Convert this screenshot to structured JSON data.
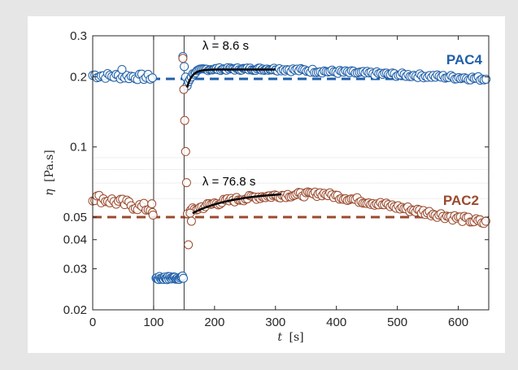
{
  "chart_data": {
    "type": "scatter",
    "x_axis": {
      "label_sym": "t",
      "label_unit": "[s]",
      "lim": [
        0,
        650
      ],
      "ticks": [
        0,
        100,
        200,
        300,
        400,
        500,
        600
      ],
      "tick_labels": [
        "0",
        "100",
        "200",
        "300",
        "400",
        "500",
        "600"
      ]
    },
    "y_axis": {
      "label_sym": "η",
      "label_unit": "[Pa.s]",
      "scale": "log",
      "lim": [
        0.02,
        0.3
      ],
      "ticks": [
        0.02,
        0.03,
        0.04,
        0.05,
        0.1,
        0.2,
        0.3
      ],
      "tick_labels": [
        "0.02",
        "0.03",
        "0.04",
        "0.05",
        "0.1",
        "0.2",
        "0.3"
      ]
    },
    "minor_grid_y": [
      0.06,
      0.07,
      0.08,
      0.09
    ],
    "vertical_lines_x": [
      100,
      150
    ],
    "series": [
      {
        "name": "PAC4",
        "color": "#1f5fa8",
        "segments": [
          {
            "x_start": 0,
            "x_end": 98,
            "step": 3.5,
            "y_from": 0.203,
            "y_to": 0.199,
            "noise": 0.006
          },
          {
            "x_start": 104,
            "x_end": 150,
            "step": 1.4,
            "y_from": 0.0273,
            "y_to": 0.0275,
            "noise": 0.0005
          },
          {
            "x_start": 148,
            "x_end": 155,
            "step": 2.3,
            "y_from": 0.245,
            "y_to": 0.18,
            "noise": 0.004
          },
          {
            "x_start": 155,
            "x_end": 300,
            "step": 2.3,
            "relax": {
              "y0": 0.183,
              "y_inf": 0.216,
              "tau": 8.6
            },
            "noise": 0.003
          },
          {
            "x_start": 300,
            "x_end": 648,
            "step": 3.2,
            "y_from": 0.216,
            "y_to": 0.196,
            "noise": 0.004
          }
        ],
        "extra_points": [
          [
            48,
            0.215
          ]
        ],
        "reference_level": 0.196,
        "fit": {
          "label": "λ = 8.6 s",
          "x_start": 155,
          "x_end": 300,
          "y0": 0.18,
          "y_inf": 0.215,
          "tau": 8.6
        }
      },
      {
        "name": "PAC2",
        "color": "#9a4a2e",
        "segments": [
          {
            "x_start": 0,
            "x_end": 98,
            "step": 3.5,
            "y_from": 0.061,
            "y_to": 0.054,
            "noise": 0.0025
          },
          {
            "x_start": 148,
            "x_end": 158,
            "step": 1.5,
            "y_from": 0.24,
            "y_to": 0.031,
            "noise": 0.0
          },
          {
            "x_start": 161,
            "x_end": 370,
            "step": 3.0,
            "relax": {
              "y0": 0.053,
              "y_inf": 0.0635,
              "tau": 76.8
            },
            "noise": 0.0015
          },
          {
            "x_start": 370,
            "x_end": 648,
            "step": 3.2,
            "y_from": 0.0635,
            "y_to": 0.047,
            "noise": 0.0015
          }
        ],
        "extra_points": [
          [
            97,
            0.057
          ],
          [
            99,
            0.051
          ],
          [
            160,
            0.052
          ],
          [
            162,
            0.048
          ]
        ],
        "reference_level": 0.05,
        "fit": {
          "label": "λ = 76.8 s",
          "x_start": 164,
          "x_end": 310,
          "y0": 0.052,
          "y_inf": 0.0645,
          "tau": 76.8
        }
      }
    ]
  }
}
